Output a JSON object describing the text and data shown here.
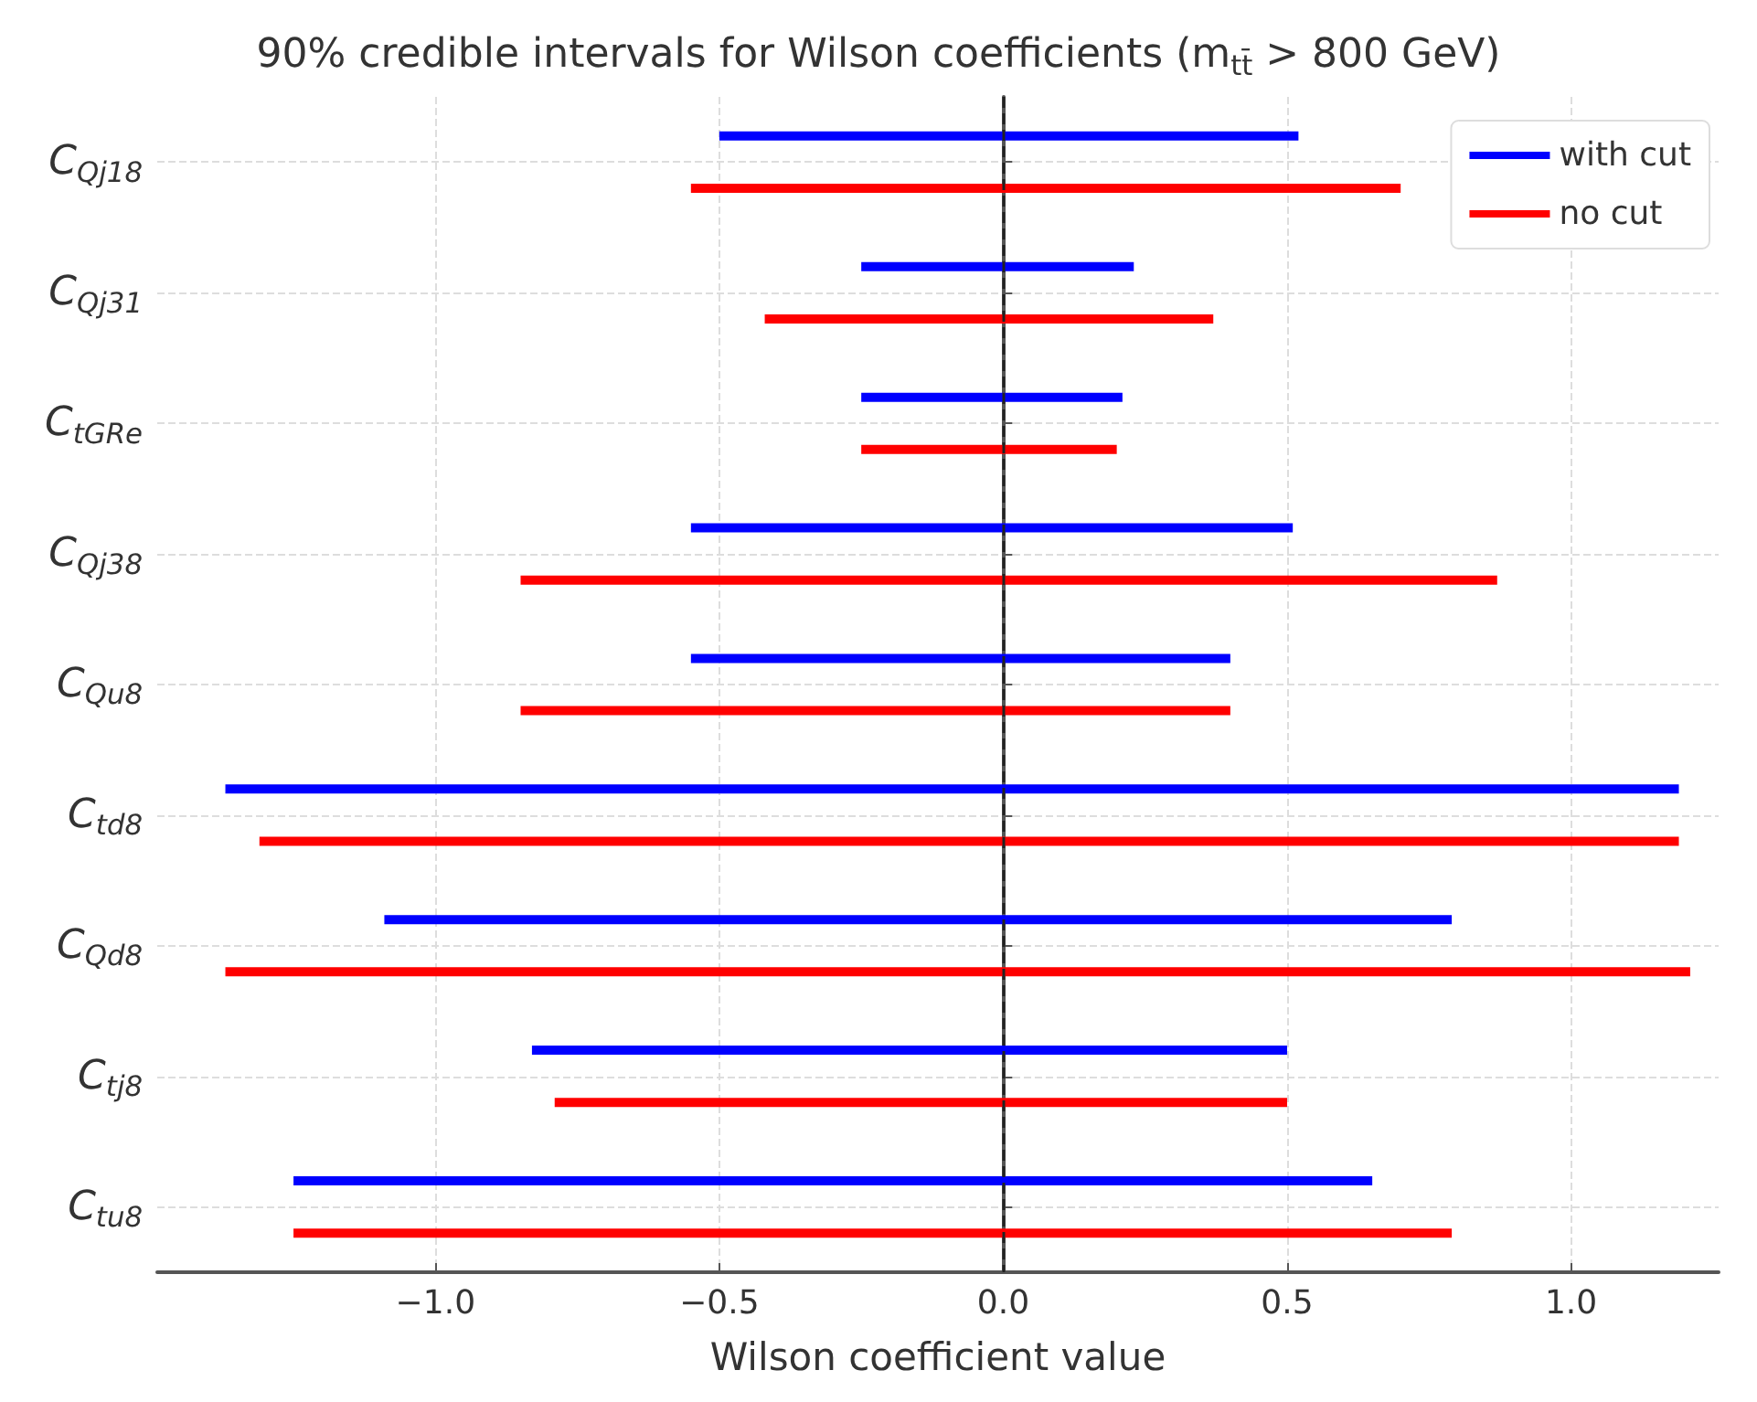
{
  "chart_data": {
    "type": "bar",
    "orientation": "horizontal",
    "title": "90% credible intervals for Wilson coefficients (m$_{tt̄}$ > 800 GeV)",
    "xlabel": "Wilson coefficient value",
    "categories": [
      "C$_{Qj18}$",
      "C$_{Qj31}$",
      "C$_{tGRe}$",
      "C$_{Qj38}$",
      "C$_{Qu8}$",
      "C$_{td8}$",
      "C$_{Qd8}$",
      "C$_{tj8}$",
      "C$_{tu8}$"
    ],
    "series": [
      {
        "name": "with cut",
        "color": "#0000ff",
        "base": [
          -0.5,
          -0.25,
          -0.25,
          -0.55,
          -0.55,
          -1.37,
          -1.09,
          -0.83,
          -1.25
        ],
        "values": [
          1.02,
          0.48,
          0.46,
          1.06,
          0.95,
          2.56,
          1.88,
          1.33,
          1.9
        ]
      },
      {
        "name": "no cut",
        "color": "#ff0000",
        "base": [
          -0.55,
          -0.42,
          -0.25,
          -0.85,
          -0.85,
          -1.31,
          -1.37,
          -0.79,
          -1.25
        ],
        "values": [
          1.25,
          0.79,
          0.45,
          1.72,
          1.25,
          2.5,
          2.58,
          1.29,
          2.04
        ]
      }
    ],
    "xlim": [
      -1.49,
      1.26
    ],
    "xticks": [
      {
        "value": -1,
        "label": "−1.0"
      },
      {
        "value": -0.5,
        "label": "−0.5"
      },
      {
        "value": 0,
        "label": "0.0"
      },
      {
        "value": 0.5,
        "label": "0.5"
      },
      {
        "value": 1,
        "label": "1.0"
      }
    ],
    "ref_lines": [
      {
        "axis": "x",
        "value": 0,
        "color": "#222222",
        "line_style": "dashed"
      }
    ],
    "grid": true,
    "legend": "top right"
  }
}
